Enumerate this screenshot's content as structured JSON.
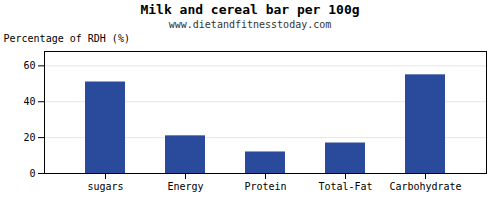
{
  "chart_data": {
    "type": "bar",
    "title": "Milk and cereal bar per 100g",
    "subtitle": "www.dietandfitnesstoday.com",
    "ylabel": "Percentage of RDH (%)",
    "categories": [
      "sugars",
      "Energy",
      "Protein",
      "Total-Fat",
      "Carbohydrate"
    ],
    "values": [
      51,
      21,
      12,
      17,
      55
    ],
    "color": "#2a4b9b",
    "ylim": [
      0,
      68
    ],
    "yticks": [
      0,
      20,
      40,
      60
    ],
    "grid": true
  }
}
